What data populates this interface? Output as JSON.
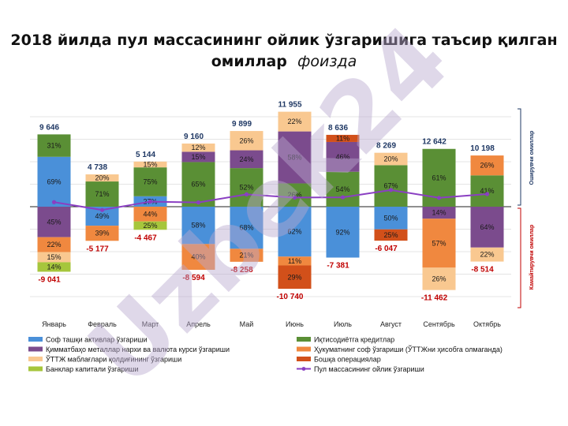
{
  "header": {
    "title_main": "2018 йилда пул массасининг ойлик ўзгаришига таъсир қилган омиллар",
    "title_unit": "фоизда"
  },
  "side_labels": {
    "positive": "Оширувчи омиллар",
    "negative": "Камайтирувчи омиллар"
  },
  "watermark": "Uzbek24",
  "colors": {
    "net_foreign": "#4a90d9",
    "credits": "#5a8f35",
    "precious": "#7b4b8d",
    "gov": "#f0883f",
    "fdi": "#f9c890",
    "other": "#d2501a",
    "banks": "#a6c63c",
    "line": "#8a3fc2",
    "total_pos": "#1f3864",
    "total_neg": "#c00000"
  },
  "chart_data": {
    "type": "bar",
    "stacked": true,
    "categories": [
      "Январь",
      "Февраль",
      "Март",
      "Апрель",
      "Май",
      "Июнь",
      "Июль",
      "Август",
      "Сентябрь",
      "Октябрь"
    ],
    "positive_totals": [
      "9 646",
      "4 738",
      "5 144",
      "9 160",
      "9 899",
      "11 955",
      "8 636",
      "8 269",
      "12 642",
      "10 198"
    ],
    "negative_totals": [
      "-9 041",
      "-5 177",
      "-4 467",
      "-8 594",
      "-8 258",
      "-10 740",
      "-7 381",
      "-6 047",
      "-11 462",
      "-8 514"
    ],
    "positive_values": [
      9646,
      4738,
      5144,
      9160,
      9899,
      11955,
      8636,
      8269,
      12642,
      10198
    ],
    "negative_values": [
      -9041,
      -5177,
      -4467,
      -8594,
      -8258,
      -10740,
      -7381,
      -6047,
      -11462,
      -8514
    ],
    "series": [
      {
        "name": "Соф ташқи активлар ўзгариши",
        "color_key": "net_foreign",
        "pos": [
          69,
          0,
          27,
          0,
          0,
          0,
          0,
          0,
          0,
          0
        ],
        "neg": [
          0,
          49,
          0,
          58,
          68,
          62,
          92,
          50,
          0,
          0
        ]
      },
      {
        "name": "Иқтисодиётга кредитлар",
        "color_key": "credits",
        "pos": [
          31,
          71,
          75,
          65,
          52,
          26,
          54,
          67,
          61,
          41
        ],
        "neg": [
          0,
          0,
          0,
          0,
          0,
          0,
          0,
          0,
          0,
          0
        ]
      },
      {
        "name": "Қимматбаҳо металлар нархи ва валюта курси ўзгариши",
        "color_key": "precious",
        "pos": [
          0,
          0,
          0,
          15,
          24,
          58,
          46,
          0,
          0,
          0
        ],
        "neg": [
          45,
          0,
          0,
          0,
          0,
          0,
          0,
          0,
          14,
          64
        ]
      },
      {
        "name": "Ҳукуматнинг соф ўзгариши (ЎТТЖни ҳисобга олмаганда)",
        "color_key": "gov",
        "pos": [
          0,
          0,
          0,
          0,
          0,
          0,
          0,
          0,
          0,
          26
        ],
        "neg": [
          22,
          39,
          44,
          40,
          21,
          11,
          0,
          0,
          57,
          0
        ]
      },
      {
        "name": "ЎТТЖ маблағлари қолдиғининг ўзгариши",
        "color_key": "fdi",
        "pos": [
          0,
          20,
          15,
          12,
          26,
          22,
          0,
          20,
          0,
          0
        ],
        "neg": [
          15,
          0,
          0,
          0,
          0,
          0,
          0,
          0,
          26,
          22
        ]
      },
      {
        "name": "Бошқа операциялар",
        "color_key": "other",
        "pos": [
          0,
          0,
          0,
          0,
          0,
          0,
          11,
          0,
          0,
          0
        ],
        "neg": [
          0,
          0,
          0,
          0,
          0,
          29,
          0,
          25,
          0,
          0
        ]
      },
      {
        "name": "Банклар капитали ўзгариши",
        "color_key": "banks",
        "pos": [
          0,
          0,
          0,
          0,
          0,
          0,
          0,
          0,
          0,
          0
        ],
        "neg": [
          14,
          0,
          25,
          0,
          0,
          0,
          0,
          0,
          0,
          0
        ]
      },
      {
        "name": "Пул массасининг ойлик ўзгариши",
        "color_key": "line",
        "type": "line",
        "values": [
          605,
          -439,
          677,
          566,
          1641,
          1215,
          1255,
          2222,
          1180,
          1684
        ]
      }
    ],
    "grid": true,
    "legend_position": "bottom"
  }
}
